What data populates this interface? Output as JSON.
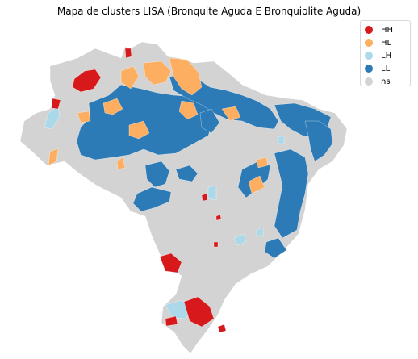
{
  "map": {
    "title": "Mapa de clusters LISA (Bronquite Aguda E Bronquiolite Aguda)"
  },
  "legend": {
    "items": [
      {
        "label": "HH",
        "color": "#d7191c"
      },
      {
        "label": "HL",
        "color": "#fdae61"
      },
      {
        "label": "LH",
        "color": "#abd9e9"
      },
      {
        "label": "LL",
        "color": "#2c7bb6"
      },
      {
        "label": "ns",
        "color": "#d3d3d3"
      }
    ]
  }
}
